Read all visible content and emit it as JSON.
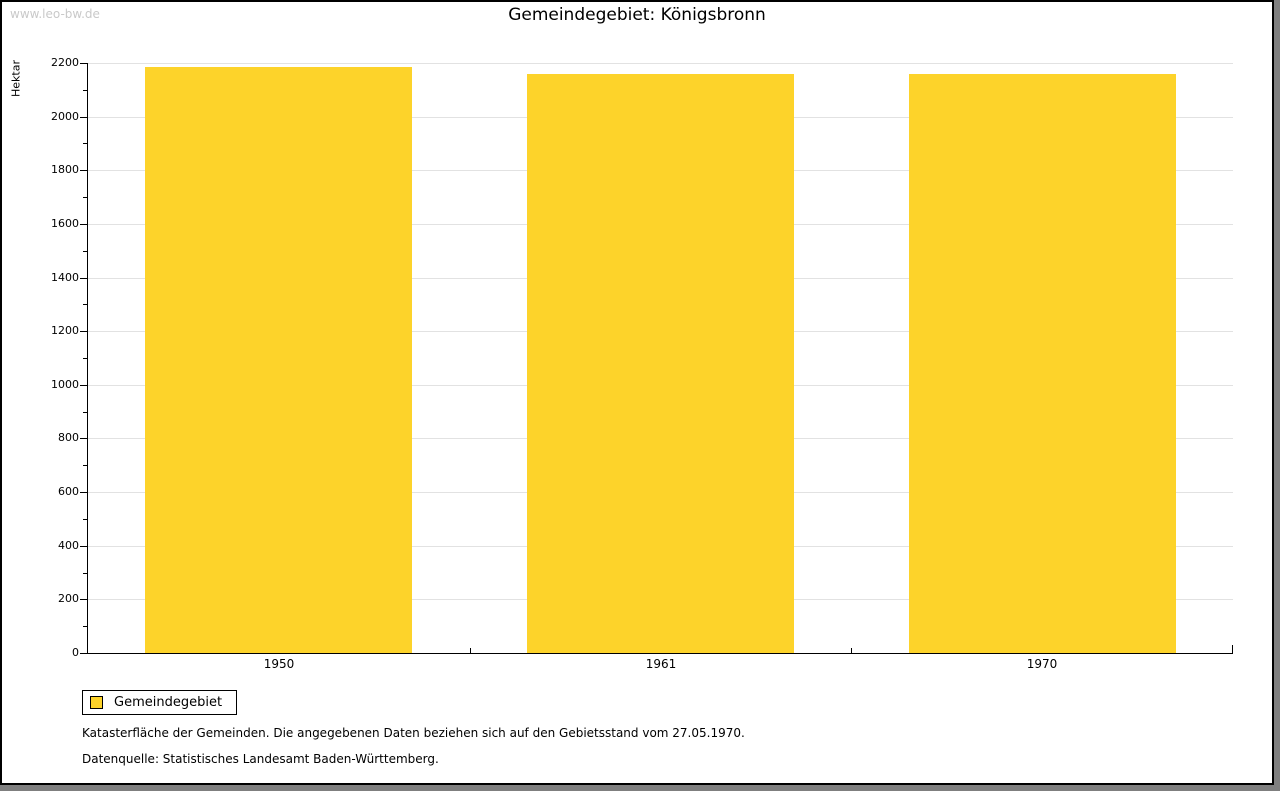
{
  "watermark": "www.leo-bw.de",
  "title": "Gemeindegebiet: Königsbronn",
  "legend": {
    "label": "Gemeindegebiet",
    "swatch_color": "#fdd32a"
  },
  "footer": {
    "line1": "Katasterfläche der Gemeinden. Die angegebenen Daten beziehen sich auf den Gebietsstand vom 27.05.1970.",
    "line2": "Datenquelle: Statistisches Landesamt Baden-Württemberg."
  },
  "colors": {
    "bar": "#fdd32a",
    "grid": "#e2e2e2",
    "axis": "#000000",
    "watermark": "#c9c9c9"
  },
  "chart_data": {
    "type": "bar",
    "title": "Gemeindegebiet: Königsbronn",
    "categories": [
      "1950",
      "1961",
      "1970"
    ],
    "series": [
      {
        "name": "Gemeindegebiet",
        "values": [
          2186,
          2160,
          2159
        ],
        "color": "#fdd32a"
      }
    ],
    "xlabel": "",
    "ylabel": "Hektar",
    "ylim": [
      0,
      2200
    ],
    "ytick_step": 200,
    "ytick_minor_step": 100,
    "grid": true,
    "legend_position": "bottom-left",
    "bar_width_fraction": 0.7
  }
}
